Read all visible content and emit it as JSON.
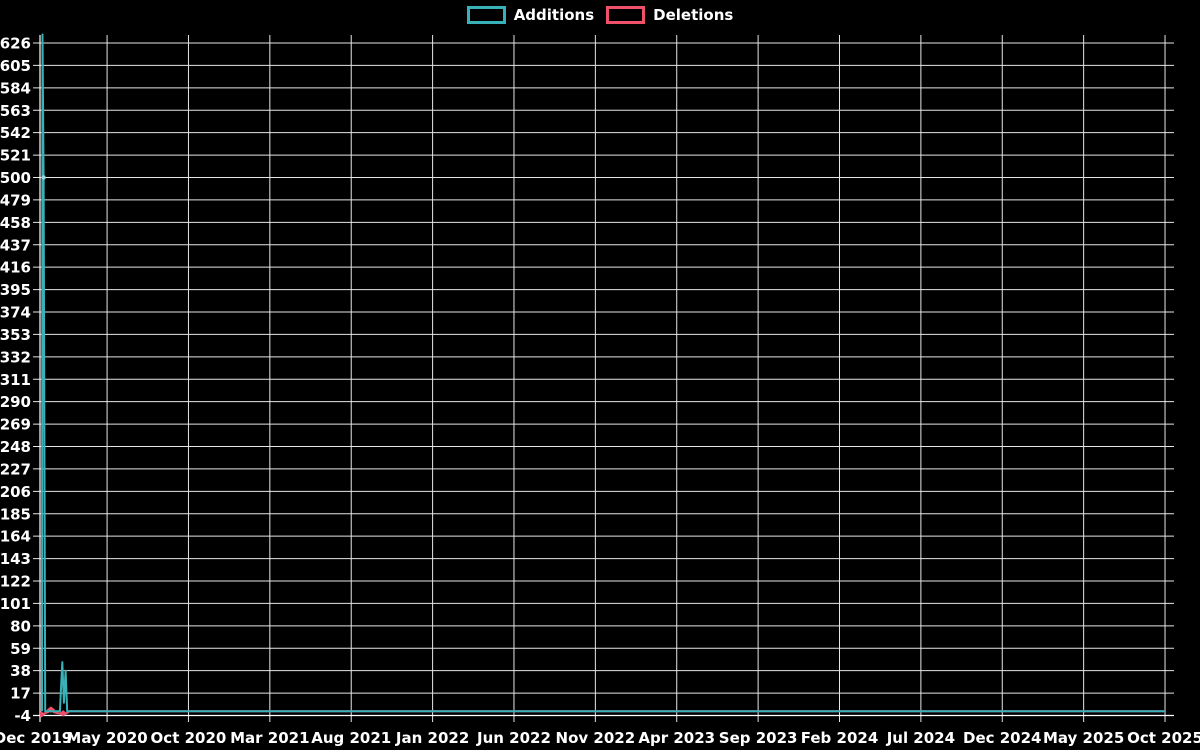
{
  "legend": {
    "position": "top-center",
    "items": [
      {
        "label": "Additions",
        "color": "#38b2b8"
      },
      {
        "label": "Deletions",
        "color": "#ee5169"
      }
    ]
  },
  "chart_data": {
    "type": "line",
    "title": "",
    "background_color": "#000000",
    "grid": true,
    "grid_color": "#e6e6e6",
    "text_color": "#ffffff",
    "legend_position": "top-center",
    "x_axis": {
      "unit": "months since Dec 2019",
      "tick_interval_months": 5,
      "tick_labels": [
        "Dec 2019",
        "May 2020",
        "Oct 2020",
        "Mar 2021",
        "Aug 2021",
        "Jan 2022",
        "Jun 2022",
        "Nov 2022",
        "Apr 2023",
        "Sep 2023",
        "Feb 2024",
        "Jul 2024",
        "Dec 2024",
        "May 2025",
        "Oct 2025"
      ],
      "range_months": [
        0,
        70
      ]
    },
    "y_axis": {
      "min": -4,
      "max": 626,
      "step": 21,
      "ticks": [
        626,
        605,
        584,
        563,
        542,
        521,
        500,
        479,
        458,
        437,
        416,
        395,
        374,
        353,
        332,
        311,
        290,
        269,
        248,
        227,
        206,
        185,
        164,
        143,
        122,
        101,
        80,
        59,
        38,
        17,
        -4
      ]
    },
    "series": [
      {
        "name": "Deletions",
        "color": "#ee5169",
        "points": [
          [
            0,
            -2
          ],
          [
            0.95,
            -3
          ],
          [
            1.35,
            -1
          ],
          [
            1.55,
            1.5
          ],
          [
            1.75,
            -1
          ],
          [
            2.0,
            -2
          ],
          [
            2.5,
            -2
          ],
          [
            2.7,
            0
          ],
          [
            70,
            0
          ]
        ],
        "markers": [
          [
            0.95,
            -3
          ],
          [
            1.55,
            1.5
          ],
          [
            2.3,
            -2
          ]
        ],
        "marker_shape": "diamond"
      },
      {
        "name": "Additions",
        "color": "#38b2b8",
        "points": [
          [
            1.0,
            0
          ],
          [
            1.03,
            634
          ],
          [
            1.1,
            500
          ],
          [
            1.2,
            0
          ],
          [
            2.1,
            0
          ],
          [
            2.25,
            46
          ],
          [
            2.35,
            8
          ],
          [
            2.45,
            38
          ],
          [
            2.55,
            0
          ],
          [
            70,
            0
          ]
        ],
        "markers": [
          [
            1.1,
            500
          ]
        ],
        "marker_shape": "dot",
        "marker_color": "#8fd8dc"
      }
    ]
  }
}
